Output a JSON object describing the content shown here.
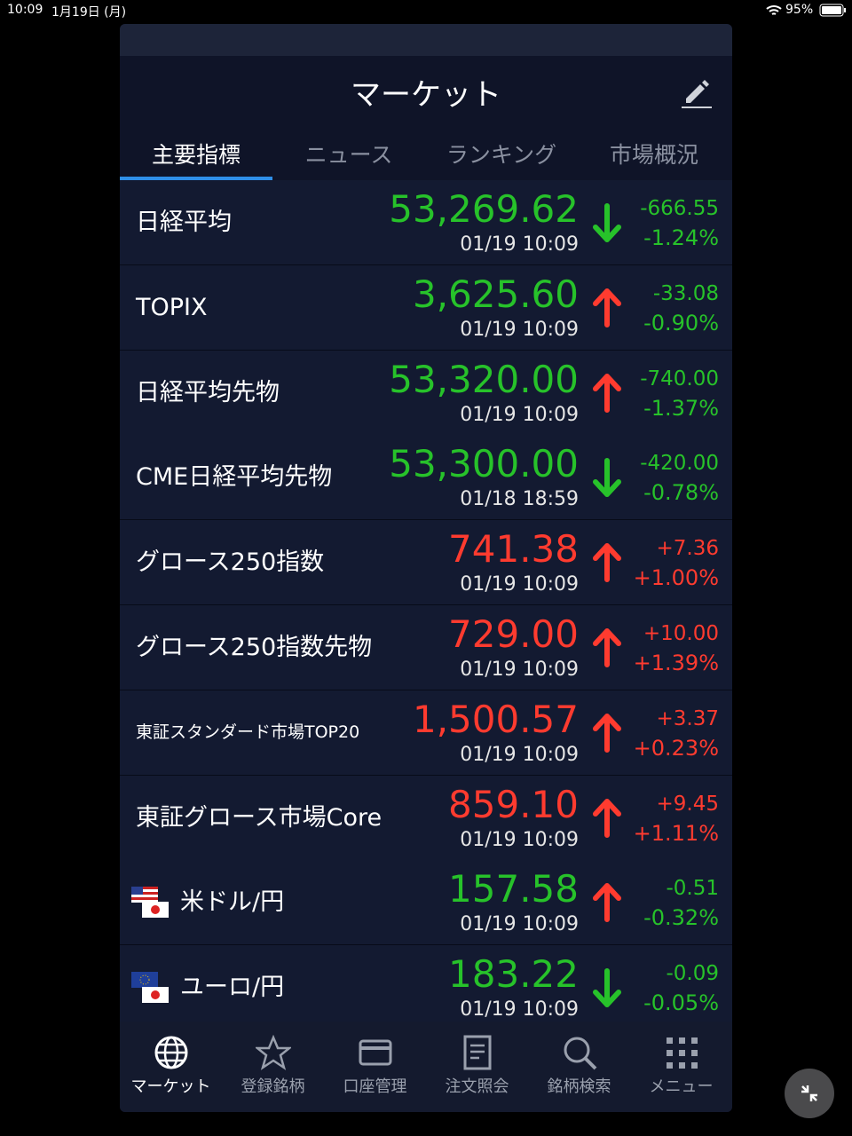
{
  "status_bar": {
    "time": "10:09",
    "date": "1月19日 (月)",
    "battery": "95%"
  },
  "header": {
    "title": "マーケット"
  },
  "tabs": [
    "主要指標",
    "ニュース",
    "ランキング",
    "市場概況"
  ],
  "selected_tab": 0,
  "rows": [
    {
      "name": "日経平均",
      "price": "53,269.62",
      "time": "01/19 10:09",
      "change": "-666.55",
      "change_pct": "-1.24%",
      "color": "green",
      "arrow": "down"
    },
    {
      "name": "TOPIX",
      "price": "3,625.60",
      "time": "01/19 10:09",
      "change": "-33.08",
      "change_pct": "-0.90%",
      "color": "green",
      "arrow": "up"
    },
    {
      "name": "日経平均先物",
      "price": "53,320.00",
      "time": "01/19 10:09",
      "change": "-740.00",
      "change_pct": "-1.37%",
      "color": "green",
      "arrow": "up"
    },
    {
      "name": "CME日経平均先物",
      "price": "53,300.00",
      "time": "01/18 18:59",
      "change": "-420.00",
      "change_pct": "-0.78%",
      "color": "green",
      "arrow": "down"
    },
    {
      "name": "グロース250指数",
      "price": "741.38",
      "time": "01/19 10:09",
      "change": "+7.36",
      "change_pct": "+1.00%",
      "color": "red",
      "arrow": "up"
    },
    {
      "name": "グロース250指数先物",
      "price": "729.00",
      "time": "01/19 10:09",
      "change": "+10.00",
      "change_pct": "+1.39%",
      "color": "red",
      "arrow": "up"
    },
    {
      "name": "東証スタンダード市場TOP20",
      "price": "1,500.57",
      "time": "01/19 10:09",
      "change": "+3.37",
      "change_pct": "+0.23%",
      "color": "red",
      "arrow": "up",
      "small": true
    },
    {
      "name": "東証グロース市場Core",
      "price": "859.10",
      "time": "01/19 10:09",
      "change": "+9.45",
      "change_pct": "+1.11%",
      "color": "red",
      "arrow": "up"
    },
    {
      "name": "米ドル/円",
      "price": "157.58",
      "time": "01/19 10:09",
      "change": "-0.51",
      "change_pct": "-0.32%",
      "color": "green",
      "arrow": "up",
      "flags": [
        "us",
        "jp"
      ]
    },
    {
      "name": "ユーロ/円",
      "price": "183.22",
      "time": "01/19 10:09",
      "change": "-0.09",
      "change_pct": "-0.05%",
      "color": "green",
      "arrow": "down",
      "flags": [
        "eu",
        "jp"
      ]
    }
  ],
  "nav": [
    "マーケット",
    "登録銘柄",
    "口座管理",
    "注文照会",
    "銘柄検索",
    "メニュー"
  ]
}
